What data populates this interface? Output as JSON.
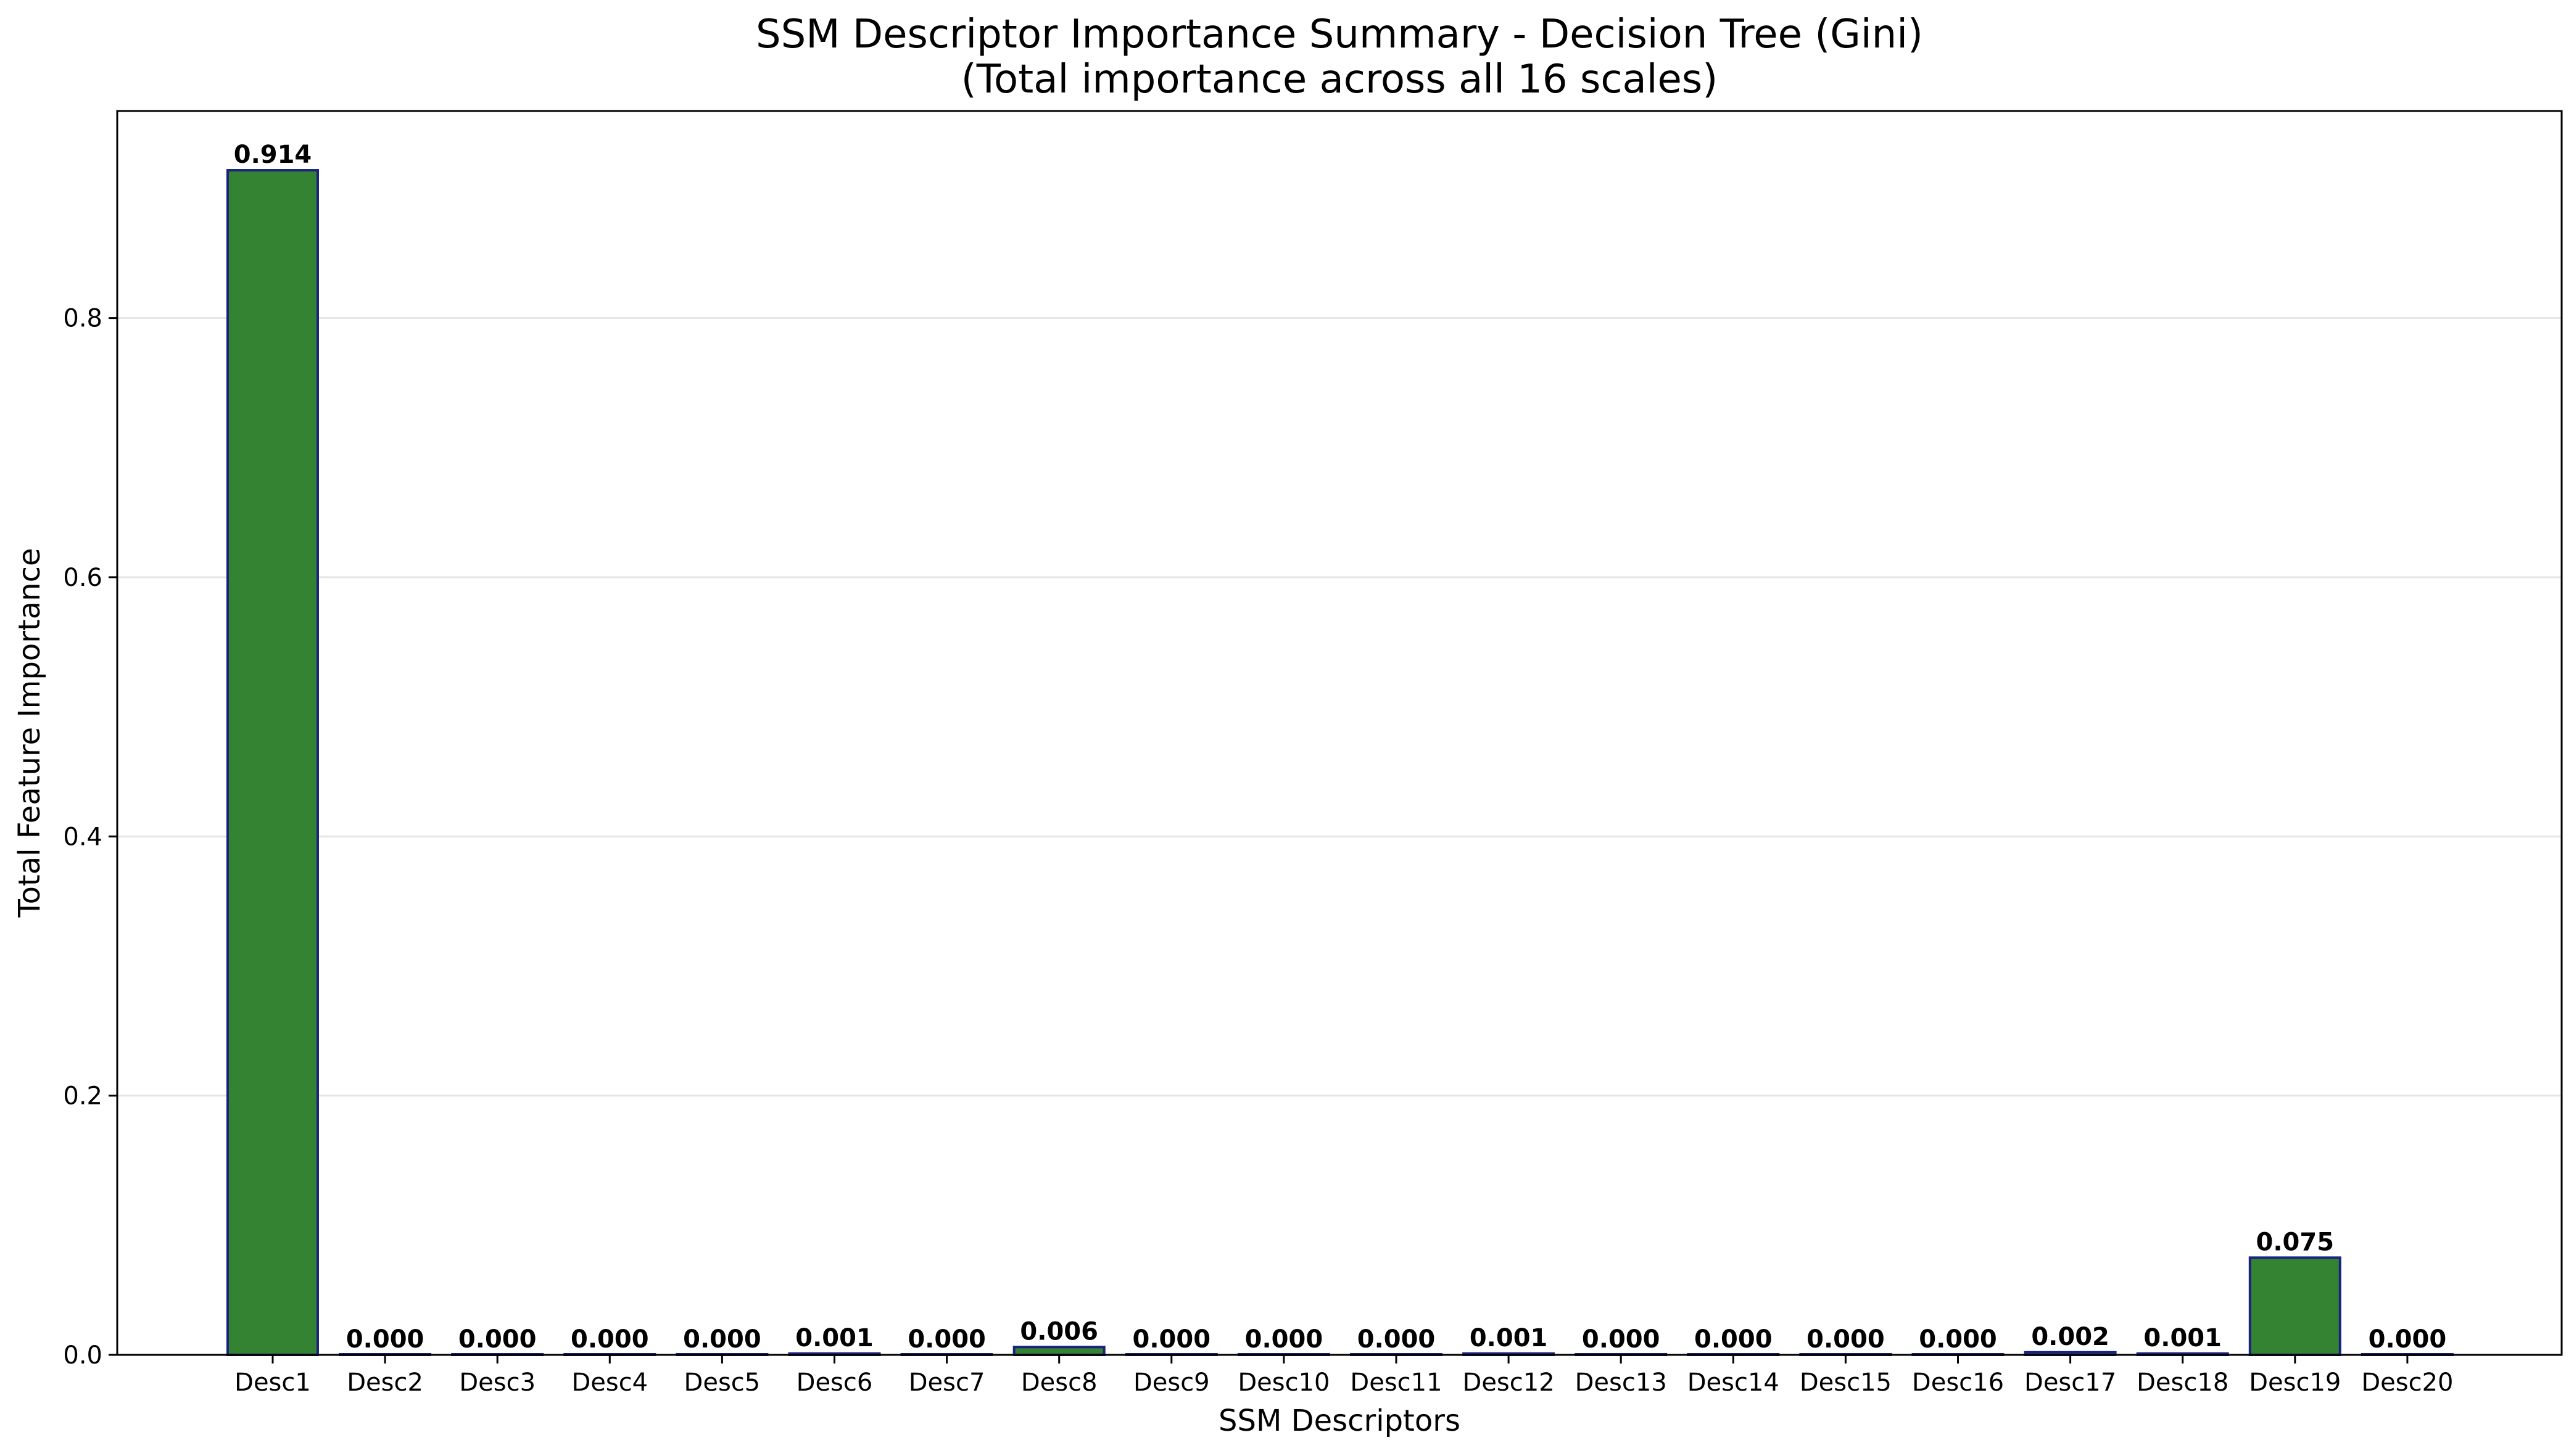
{
  "chart_data": {
    "type": "bar",
    "title": "SSM Descriptor Importance Summary - Decision Tree (Gini)",
    "subtitle": "(Total importance across all 16 scales)",
    "xlabel": "SSM Descriptors",
    "ylabel": "Total Feature Importance",
    "categories": [
      "Desc1",
      "Desc2",
      "Desc3",
      "Desc4",
      "Desc5",
      "Desc6",
      "Desc7",
      "Desc8",
      "Desc9",
      "Desc10",
      "Desc11",
      "Desc12",
      "Desc13",
      "Desc14",
      "Desc15",
      "Desc16",
      "Desc17",
      "Desc18",
      "Desc19",
      "Desc20"
    ],
    "values": [
      0.914,
      0.0,
      0.0,
      0.0,
      0.0,
      0.001,
      0.0,
      0.006,
      0.0,
      0.0,
      0.0,
      0.001,
      0.0,
      0.0,
      0.0,
      0.0,
      0.002,
      0.001,
      0.075,
      0.0
    ],
    "value_labels": [
      "0.914",
      "0.000",
      "0.000",
      "0.000",
      "0.000",
      "0.001",
      "0.000",
      "0.006",
      "0.000",
      "0.000",
      "0.000",
      "0.001",
      "0.000",
      "0.000",
      "0.000",
      "0.000",
      "0.002",
      "0.001",
      "0.075",
      "0.000"
    ],
    "yticks": [
      0.0,
      0.2,
      0.4,
      0.6,
      0.8
    ],
    "ytick_labels": [
      "0.0",
      "0.2",
      "0.4",
      "0.6",
      "0.8"
    ],
    "ylim": [
      0,
      0.9597
    ],
    "grid": "y",
    "bar_color": "#338333",
    "bar_edge_color": "#1a237e",
    "grid_color": "#e5e5e5"
  }
}
